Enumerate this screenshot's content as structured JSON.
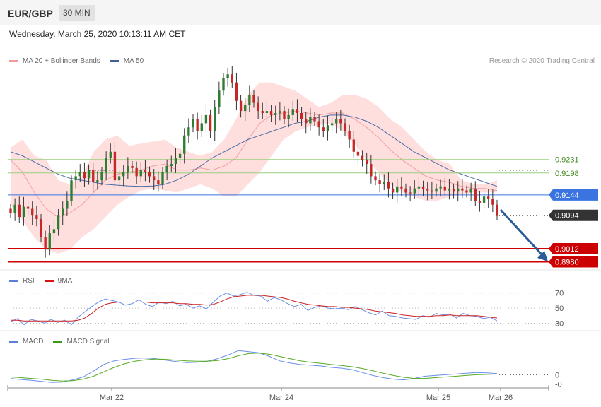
{
  "header": {
    "symbol": "EUR/GBP",
    "timeframe": "30 MIN",
    "timestamp": "Wednesday, March 25, 2020 10:13:11 AM CET"
  },
  "credit": "Research © 2020 Trading Central",
  "colors": {
    "candle": "#c62828",
    "candle_up": "#2e7d32",
    "band": "#ffdede",
    "ma20": "#f2a0a0",
    "ma50": "#4a6da8",
    "rsi": "#6a8fe8",
    "rsi_ma": "#cc2222",
    "macd": "#6a8fe8",
    "macd_signal": "#55aa22",
    "arrow": "#2a5c99"
  },
  "chart_data": [
    {
      "type": "candlestick",
      "legend": [
        {
          "name": "MA 20 + Bollinger Bands",
          "color": "#f29a9a"
        },
        {
          "name": "MA 50",
          "color": "#3f5f9a"
        }
      ],
      "x_ticks": [
        "Mar 22",
        "Mar 24",
        "Mar 25",
        "Mar 26"
      ],
      "ylim": [
        0.896,
        0.9456
      ],
      "levels": [
        {
          "value": 0.9231,
          "label": "0.9231",
          "style": "green-line"
        },
        {
          "value": 0.9198,
          "label": "0.9198",
          "style": "green-line"
        },
        {
          "value": 0.9144,
          "label": "0.9144",
          "style": "blue-tag"
        },
        {
          "value": 0.9094,
          "label": "0.9094",
          "style": "dark-tag"
        },
        {
          "value": 0.9012,
          "label": "0.9012",
          "style": "red-tag"
        },
        {
          "value": 0.898,
          "label": "0.8980",
          "style": "red-tag"
        }
      ],
      "close": [
        0.91,
        0.912,
        0.909,
        0.9115,
        0.911,
        0.9095,
        0.9085,
        0.904,
        0.901,
        0.905,
        0.906,
        0.9095,
        0.911,
        0.913,
        0.918,
        0.919,
        0.92,
        0.9185,
        0.9205,
        0.9175,
        0.918,
        0.92,
        0.9235,
        0.925,
        0.918,
        0.919,
        0.92,
        0.9215,
        0.921,
        0.919,
        0.9205,
        0.92,
        0.919,
        0.918,
        0.917,
        0.92,
        0.9215,
        0.922,
        0.9235,
        0.9245,
        0.929,
        0.931,
        0.933,
        0.93,
        0.932,
        0.934,
        0.93,
        0.936,
        0.94,
        0.943,
        0.944,
        0.942,
        0.9375,
        0.935,
        0.9365,
        0.939,
        0.937,
        0.935,
        0.9345,
        0.935,
        0.934,
        0.9345,
        0.935,
        0.933,
        0.934,
        0.9355,
        0.9345,
        0.933,
        0.932,
        0.9335,
        0.9325,
        0.931,
        0.93,
        0.9315,
        0.932,
        0.933,
        0.932,
        0.93,
        0.928,
        0.925,
        0.924,
        0.923,
        0.922,
        0.919,
        0.918,
        0.917,
        0.9175,
        0.916,
        0.915,
        0.9165,
        0.916,
        0.915,
        0.9148,
        0.916,
        0.9165,
        0.9158,
        0.9155,
        0.9152,
        0.916,
        0.9165,
        0.9155,
        0.9158,
        0.9152,
        0.916,
        0.9155,
        0.915,
        0.9158,
        0.913,
        0.9125,
        0.914,
        0.9135,
        0.912,
        0.9094
      ],
      "ma20_band": {
        "upper": [
          0.926,
          0.928,
          0.924,
          0.923,
          0.918,
          0.917,
          0.919,
          0.925,
          0.928,
          0.929,
          0.9265,
          0.927,
          0.9275,
          0.928,
          0.926,
          0.925,
          0.924,
          0.925,
          0.928,
          0.933,
          0.939,
          0.942,
          0.942,
          0.941,
          0.94,
          0.938,
          0.936,
          0.937,
          0.939,
          0.939,
          0.938,
          0.936,
          0.933,
          0.931,
          0.928,
          0.925,
          0.923,
          0.922,
          0.918,
          0.917,
          0.917,
          0.918
        ],
        "lower": [
          0.912,
          0.908,
          0.904,
          0.901,
          0.9,
          0.901,
          0.904,
          0.906,
          0.909,
          0.912,
          0.914,
          0.9155,
          0.916,
          0.9155,
          0.915,
          0.916,
          0.917,
          0.916,
          0.914,
          0.914,
          0.917,
          0.92,
          0.924,
          0.928,
          0.93,
          0.931,
          0.9315,
          0.932,
          0.93,
          0.927,
          0.923,
          0.92,
          0.917,
          0.915,
          0.914,
          0.913,
          0.913,
          0.914,
          0.9145,
          0.915,
          0.915,
          0.915
        ],
        "mid": [
          0.923,
          0.92,
          0.915,
          0.911,
          0.909,
          0.91,
          0.912,
          0.915,
          0.918,
          0.9195,
          0.92,
          0.9205,
          0.9215,
          0.922,
          0.9205,
          0.9205,
          0.921,
          0.9205,
          0.9215,
          0.9235,
          0.928,
          0.932,
          0.934,
          0.9345,
          0.935,
          0.9345,
          0.934,
          0.9345,
          0.9345,
          0.933,
          0.931,
          0.9285,
          0.9255,
          0.923,
          0.921,
          0.919,
          0.918,
          0.9175,
          0.9165,
          0.916,
          0.916,
          0.9155
        ]
      },
      "ma50": [
        0.925,
        0.924,
        0.9225,
        0.921,
        0.9195,
        0.9185,
        0.918,
        0.9175,
        0.917,
        0.9168,
        0.9166,
        0.9165,
        0.9166,
        0.917,
        0.918,
        0.9195,
        0.9215,
        0.9235,
        0.925,
        0.9265,
        0.928,
        0.929,
        0.93,
        0.931,
        0.932,
        0.9325,
        0.9335,
        0.934,
        0.934,
        0.9335,
        0.9325,
        0.931,
        0.929,
        0.927,
        0.925,
        0.9235,
        0.922,
        0.9205,
        0.9195,
        0.9185,
        0.9175,
        0.9165
      ]
    },
    {
      "type": "line",
      "legend": [
        {
          "name": "RSI",
          "color": "#5b7fd8"
        },
        {
          "name": "9MA",
          "color": "#d11"
        }
      ],
      "ylim": [
        22,
        80
      ],
      "y_ticks": [
        {
          "value": 70,
          "label": "70"
        },
        {
          "value": 50,
          "label": "50"
        },
        {
          "value": 30,
          "label": "30"
        }
      ],
      "series": [
        {
          "name": "RSI",
          "values": [
            32,
            36,
            28,
            35,
            33,
            30,
            35,
            31,
            34,
            28,
            38,
            45,
            52,
            58,
            62,
            60,
            58,
            54,
            56,
            61,
            55,
            52,
            58,
            56,
            59,
            53,
            55,
            50,
            53,
            49,
            58,
            66,
            70,
            66,
            68,
            71,
            67,
            66,
            59,
            64,
            61,
            56,
            52,
            55,
            47,
            51,
            53,
            50,
            49,
            50,
            48,
            52,
            48,
            44,
            41,
            46,
            40,
            39,
            37,
            36,
            35,
            40,
            38,
            43,
            41,
            42,
            37,
            43,
            40,
            39,
            36,
            38,
            33
          ]
        },
        {
          "name": "9MA",
          "values": [
            34,
            34,
            33,
            33,
            33,
            33,
            33,
            33,
            33,
            33,
            34,
            37,
            43,
            50,
            55,
            57,
            58,
            58,
            58,
            58,
            58,
            57,
            57,
            57,
            57,
            56,
            56,
            55,
            55,
            54,
            55,
            58,
            62,
            65,
            66,
            67,
            67,
            67,
            66,
            65,
            64,
            62,
            59,
            57,
            55,
            54,
            53,
            52,
            52,
            51,
            51,
            50,
            49,
            48,
            46,
            45,
            44,
            43,
            41,
            40,
            39,
            39,
            39,
            40,
            40,
            41,
            40,
            40,
            40,
            40,
            39,
            38,
            37
          ]
        }
      ]
    },
    {
      "type": "line",
      "legend": [
        {
          "name": "MACD",
          "color": "#5b7fd8"
        },
        {
          "name": "MACD Signal",
          "color": "#3a9a18"
        }
      ],
      "ylim": [
        -0.0034,
        0.0078
      ],
      "y_ticks": [
        {
          "value": 0,
          "label": "0"
        },
        {
          "value": -0.0025,
          "label": "-0"
        }
      ],
      "series": [
        {
          "name": "MACD",
          "values": [
            -0.001,
            -0.0013,
            -0.0015,
            -0.0018,
            -0.0021,
            -0.002,
            -0.0014,
            -0.0006,
            0.001,
            0.0028,
            0.0038,
            0.0042,
            0.0045,
            0.0046,
            0.0044,
            0.004,
            0.0036,
            0.0033,
            0.0034,
            0.0037,
            0.0044,
            0.0054,
            0.0066,
            0.0063,
            0.006,
            0.005,
            0.0038,
            0.0032,
            0.0028,
            0.0026,
            0.0024,
            0.002,
            0.0018,
            0.0014,
            0.0006,
            -0.0002,
            -0.0008,
            -0.0012,
            -0.0014,
            -0.001,
            -0.0004,
            -0.0002,
            0,
            0.0002,
            0.0004,
            0.0006,
            0.0005,
            0.0003
          ]
        },
        {
          "name": "MACD Signal",
          "values": [
            -0.0006,
            -0.0008,
            -0.001,
            -0.0012,
            -0.0015,
            -0.0017,
            -0.0016,
            -0.0012,
            -0.0004,
            0.0008,
            0.002,
            0.003,
            0.0037,
            0.0041,
            0.0043,
            0.0042,
            0.004,
            0.0038,
            0.0037,
            0.0037,
            0.0039,
            0.0044,
            0.0052,
            0.0058,
            0.0059,
            0.0056,
            0.005,
            0.0044,
            0.0038,
            0.0034,
            0.0031,
            0.0028,
            0.0025,
            0.0022,
            0.0017,
            0.0011,
            0.0004,
            -0.0002,
            -0.0007,
            -0.001,
            -0.001,
            -0.0008,
            -0.0006,
            -0.0004,
            -0.0002,
            0,
            0.0001,
            0.0002
          ]
        }
      ]
    }
  ]
}
